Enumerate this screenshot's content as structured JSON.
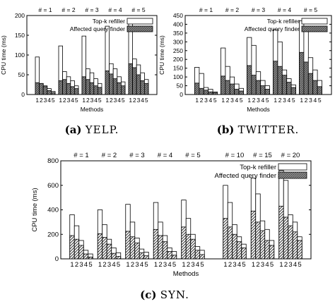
{
  "chart_data": [
    {
      "type": "bar",
      "caption_label": "(a)",
      "caption_name": "YELP.",
      "group_labels": [
        "# = 1",
        "# = 2",
        "# = 3",
        "# = 4",
        "# = 5"
      ],
      "categories": [
        "1",
        "2",
        "3",
        "4",
        "5"
      ],
      "xlabel": "Methods",
      "ylabel": "CPU time (ms)",
      "ylim": [
        0,
        200
      ],
      "yticks": [
        0,
        50,
        100,
        150,
        200
      ],
      "legend": {
        "placement": "top-right"
      },
      "series": [
        {
          "name": "Top-k refiller",
          "pattern": "white",
          "values": [
            [
              95,
              28,
              22,
              15,
              8
            ],
            [
              123,
              58,
              45,
              35,
              22
            ],
            [
              148,
              65,
              55,
              40,
              28
            ],
            [
              173,
              78,
              65,
              45,
              32
            ],
            [
              185,
              90,
              75,
              55,
              38
            ]
          ]
        },
        {
          "name": "Affected query finder",
          "pattern": "dense-gray",
          "values": [
            [
              30,
              28,
              20,
              10,
              5
            ],
            [
              35,
              38,
              28,
              20,
              15
            ],
            [
              45,
              38,
              30,
              22,
              18
            ],
            [
              60,
              52,
              40,
              30,
              22
            ],
            [
              78,
              68,
              50,
              35,
              28
            ]
          ]
        }
      ]
    },
    {
      "type": "bar",
      "caption_label": "(b)",
      "caption_name": "TWITTER.",
      "group_labels": [
        "# = 1",
        "# = 2",
        "# = 3",
        "# = 4",
        "# = 5"
      ],
      "categories": [
        "1",
        "2",
        "3",
        "4",
        "5"
      ],
      "xlabel": "Methods",
      "ylabel": "CPU time (ms)",
      "ylim": [
        0,
        450
      ],
      "yticks": [
        0,
        50,
        100,
        150,
        200,
        250,
        300,
        350,
        400,
        450
      ],
      "legend": {
        "placement": "top-right"
      },
      "series": [
        {
          "name": "Top-k refiller",
          "pattern": "white",
          "values": [
            [
              155,
              120,
              40,
              30,
              15
            ],
            [
              265,
              160,
              100,
              60,
              35
            ],
            [
              325,
              280,
              130,
              80,
              50
            ],
            [
              370,
              300,
              140,
              90,
              55
            ],
            [
              420,
              375,
              210,
              140,
              80
            ]
          ]
        },
        {
          "name": "Affected query finder",
          "pattern": "dense-gray",
          "values": [
            [
              65,
              35,
              25,
              15,
              10
            ],
            [
              105,
              80,
              60,
              30,
              20
            ],
            [
              165,
              110,
              80,
              50,
              30
            ],
            [
              190,
              160,
              110,
              70,
              40
            ],
            [
              240,
              185,
              120,
              80,
              45
            ]
          ]
        }
      ]
    },
    {
      "type": "bar",
      "caption_label": "(c)",
      "caption_name": "SYN.",
      "group_labels": [
        "# = 1",
        "# = 2",
        "# = 3",
        "# = 4",
        "# = 5",
        "# = 10",
        "# = 15",
        "# = 20"
      ],
      "categories": [
        "1",
        "2",
        "3",
        "4",
        "5"
      ],
      "xlabel": "Methods",
      "ylabel": "CPU time (ms)",
      "ylim": [
        0,
        800
      ],
      "yticks": [
        0,
        200,
        400,
        600,
        800
      ],
      "legend": {
        "placement": "top-right"
      },
      "series": [
        {
          "name": "Top-k refiller",
          "pattern": "white",
          "values": [
            [
              360,
              270,
              150,
              70,
              40
            ],
            [
              400,
              280,
              160,
              90,
              50
            ],
            [
              445,
              300,
              170,
              80,
              55
            ],
            [
              460,
              300,
              190,
              90,
              60
            ],
            [
              480,
              330,
              200,
              100,
              70
            ],
            [
              600,
              460,
              280,
              180,
              120
            ],
            [
              660,
              530,
              310,
              240,
              150
            ],
            [
              720,
              640,
              360,
              300,
              180
            ]
          ]
        },
        {
          "name": "Affected query finder",
          "pattern": "hatch",
          "values": [
            [
              190,
              160,
              110,
              40,
              15
            ],
            [
              205,
              175,
              120,
              45,
              20
            ],
            [
              225,
              180,
              130,
              50,
              25
            ],
            [
              240,
              190,
              140,
              60,
              30
            ],
            [
              260,
              200,
              160,
              70,
              35
            ],
            [
              330,
              260,
              200,
              140,
              90
            ],
            [
              390,
              300,
              230,
              150,
              110
            ],
            [
              430,
              340,
              270,
              220,
              150
            ]
          ]
        }
      ]
    }
  ]
}
